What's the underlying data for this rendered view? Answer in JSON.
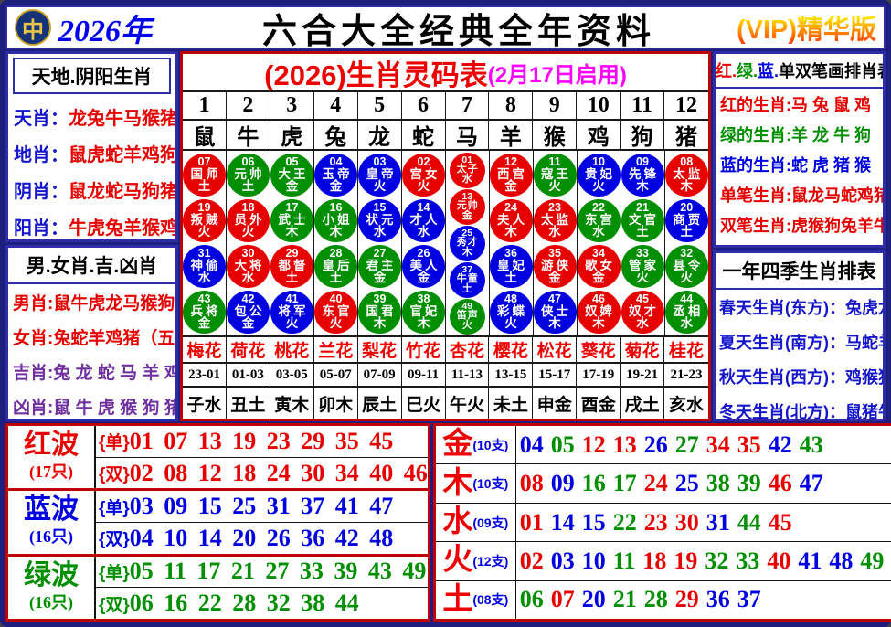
{
  "header": {
    "logo_glyph": "中",
    "year": "2026年",
    "title": "六合大全经典全年资料",
    "vip_badge": "(VIP)精华版"
  },
  "left_top": {
    "header": "天地.阴阳生肖",
    "rows": [
      {
        "label": "天肖：",
        "value": "龙兔牛马猴猪"
      },
      {
        "label": "地肖：",
        "value": "鼠虎蛇羊鸡狗"
      },
      {
        "label": "阴肖：",
        "value": "鼠龙蛇马狗猪"
      },
      {
        "label": "阳肖：",
        "value": "牛虎兔羊猴鸡"
      }
    ]
  },
  "left_bottom": {
    "header": "男.女肖.吉.凶肖",
    "rows": [
      {
        "label": "男肖:",
        "value": "鼠牛虎龙马猴狗",
        "c": "r"
      },
      {
        "label": "女肖:",
        "value": "兔蛇羊鸡猪（五宫",
        "c": "r"
      },
      {
        "label": "吉肖:",
        "value": "兔 龙 蛇 马 羊 鸡",
        "c": "p"
      },
      {
        "label": "凶肖:",
        "value": "鼠 牛 虎 猴 狗 猪",
        "c": "p"
      }
    ]
  },
  "main": {
    "title_red": "(2026)生肖灵码表",
    "title_note": "(2月17日启用)",
    "numbers": [
      "1",
      "2",
      "3",
      "4",
      "5",
      "6",
      "7",
      "8",
      "9",
      "10",
      "11",
      "12"
    ],
    "animals": [
      "鼠",
      "牛",
      "虎",
      "兔",
      "龙",
      "蛇",
      "马",
      "羊",
      "猴",
      "鸡",
      "狗",
      "猪"
    ],
    "columns": [
      [
        {
          "n": "07",
          "role": "国师",
          "el": "土",
          "c": "r"
        },
        {
          "n": "19",
          "role": "叛贼",
          "el": "火",
          "c": "r"
        },
        {
          "n": "31",
          "role": "神偷",
          "el": "水",
          "c": "b"
        },
        {
          "n": "43",
          "role": "兵将",
          "el": "金",
          "c": "g"
        }
      ],
      [
        {
          "n": "06",
          "role": "元帅",
          "el": "土",
          "c": "g"
        },
        {
          "n": "18",
          "role": "员外",
          "el": "火",
          "c": "r"
        },
        {
          "n": "30",
          "role": "大将",
          "el": "水",
          "c": "r"
        },
        {
          "n": "42",
          "role": "包公",
          "el": "金",
          "c": "b"
        }
      ],
      [
        {
          "n": "05",
          "role": "大王",
          "el": "金",
          "c": "g"
        },
        {
          "n": "17",
          "role": "武士",
          "el": "木",
          "c": "g"
        },
        {
          "n": "29",
          "role": "都督",
          "el": "土",
          "c": "r"
        },
        {
          "n": "41",
          "role": "将军",
          "el": "火",
          "c": "b"
        }
      ],
      [
        {
          "n": "04",
          "role": "玉帝",
          "el": "金",
          "c": "b"
        },
        {
          "n": "16",
          "role": "小姐",
          "el": "木",
          "c": "g"
        },
        {
          "n": "28",
          "role": "皇后",
          "el": "土",
          "c": "g"
        },
        {
          "n": "40",
          "role": "东官",
          "el": "火",
          "c": "r"
        }
      ],
      [
        {
          "n": "03",
          "role": "皇帝",
          "el": "火",
          "c": "b"
        },
        {
          "n": "15",
          "role": "状元",
          "el": "水",
          "c": "b"
        },
        {
          "n": "27",
          "role": "君主",
          "el": "金",
          "c": "g"
        },
        {
          "n": "39",
          "role": "国君",
          "el": "木",
          "c": "g"
        }
      ],
      [
        {
          "n": "02",
          "role": "宫女",
          "el": "火",
          "c": "r"
        },
        {
          "n": "14",
          "role": "才人",
          "el": "水",
          "c": "b"
        },
        {
          "n": "26",
          "role": "美人",
          "el": "金",
          "c": "b"
        },
        {
          "n": "38",
          "role": "官妃",
          "el": "木",
          "c": "g"
        }
      ],
      [
        {
          "n": "01",
          "role": "太子",
          "el": "水",
          "c": "r"
        },
        {
          "n": "13",
          "role": "元帅",
          "el": "金",
          "c": "r"
        },
        {
          "n": "25",
          "role": "秀才",
          "el": "木",
          "c": "b"
        },
        {
          "n": "37",
          "role": "牛童",
          "el": "土",
          "c": "b"
        },
        {
          "n": "49",
          "role": "笛声",
          "el": "火",
          "c": "g"
        }
      ],
      [
        {
          "n": "12",
          "role": "西宫",
          "el": "金",
          "c": "r"
        },
        {
          "n": "24",
          "role": "夫人",
          "el": "木",
          "c": "r"
        },
        {
          "n": "36",
          "role": "皇妃",
          "el": "土",
          "c": "b"
        },
        {
          "n": "48",
          "role": "彩蝶",
          "el": "火",
          "c": "b"
        }
      ],
      [
        {
          "n": "11",
          "role": "寇王",
          "el": "火",
          "c": "g"
        },
        {
          "n": "23",
          "role": "太监",
          "el": "水",
          "c": "r"
        },
        {
          "n": "35",
          "role": "游侠",
          "el": "金",
          "c": "r"
        },
        {
          "n": "47",
          "role": "侠士",
          "el": "木",
          "c": "b"
        }
      ],
      [
        {
          "n": "10",
          "role": "贵妃",
          "el": "火",
          "c": "b"
        },
        {
          "n": "22",
          "role": "东宫",
          "el": "水",
          "c": "g"
        },
        {
          "n": "34",
          "role": "歌女",
          "el": "金",
          "c": "r"
        },
        {
          "n": "46",
          "role": "奴婢",
          "el": "木",
          "c": "r"
        }
      ],
      [
        {
          "n": "09",
          "role": "先锋",
          "el": "木",
          "c": "b"
        },
        {
          "n": "21",
          "role": "文官",
          "el": "土",
          "c": "g"
        },
        {
          "n": "33",
          "role": "管家",
          "el": "火",
          "c": "g"
        },
        {
          "n": "45",
          "role": "奴才",
          "el": "水",
          "c": "r"
        }
      ],
      [
        {
          "n": "08",
          "role": "太监",
          "el": "木",
          "c": "r"
        },
        {
          "n": "20",
          "role": "商贾",
          "el": "土",
          "c": "b"
        },
        {
          "n": "32",
          "role": "县令",
          "el": "火",
          "c": "g"
        },
        {
          "n": "44",
          "role": "丞相",
          "el": "水",
          "c": "g"
        }
      ]
    ],
    "flowers": [
      "梅花",
      "荷花",
      "桃花",
      "兰花",
      "梨花",
      "竹花",
      "杏花",
      "樱花",
      "松花",
      "葵花",
      "菊花",
      "桂花"
    ],
    "times": [
      "23-01",
      "01-03",
      "03-05",
      "05-07",
      "07-09",
      "09-11",
      "11-13",
      "13-15",
      "15-17",
      "17-19",
      "19-21",
      "21-23"
    ],
    "branches": [
      "子水",
      "丑土",
      "寅木",
      "卯木",
      "辰土",
      "巳火",
      "午火",
      "未土",
      "申金",
      "酉金",
      "戌土",
      "亥水"
    ]
  },
  "right_top": {
    "header_parts": [
      {
        "t": "红.",
        "c": "r"
      },
      {
        "t": "绿.",
        "c": "g"
      },
      {
        "t": "蓝.",
        "c": "b"
      },
      {
        "t": "单双笔画排肖表",
        "c": "k"
      }
    ],
    "rows": [
      {
        "label": "红的生肖:",
        "value": "马 兔 鼠 鸡",
        "c": "r"
      },
      {
        "label": "绿的生肖:",
        "value": "羊 龙 牛 狗",
        "c": "g"
      },
      {
        "label": "蓝的生肖:",
        "value": "蛇 虎 猪 猴",
        "c": "b"
      },
      {
        "label": "单笔生肖:",
        "value": "鼠龙马蛇鸡猪",
        "c": "r"
      },
      {
        "label": "双笔生肖:",
        "value": "虎猴狗兔羊牛",
        "c": "r"
      }
    ]
  },
  "right_bottom": {
    "header": "一年四季生肖排表",
    "rows": [
      "春天生肖(东方)：兔虎龙",
      "夏天生肖(南方)：马蛇羊",
      "秋天生肖(西方)：鸡猴狗",
      "冬天生肖(北方)：鼠猪牛"
    ]
  },
  "waves": [
    {
      "name": "红波",
      "count": "(17只)",
      "c": "r",
      "odd_tag": "{单}",
      "odd": "01 07 13 19 23 29 35 45",
      "even_tag": "{双}",
      "even": "02 08 12 18 24 30 34 40 46"
    },
    {
      "name": "蓝波",
      "count": "(16只)",
      "c": "b",
      "odd_tag": "{单}",
      "odd": "03 09 15 25 31 37 41 47",
      "even_tag": "{双}",
      "even": "04 10 14 20 26 36 42 48"
    },
    {
      "name": "绿波",
      "count": "(16只)",
      "c": "g",
      "odd_tag": "{单}",
      "odd": "05 11 17 21 27 33 39 43 49",
      "even_tag": "{双}",
      "even": "06 16 22 28 32 38 44"
    }
  ],
  "elements": [
    {
      "name": "金",
      "count": "(10支)",
      "nums": [
        [
          "04",
          "b"
        ],
        [
          "05",
          "g"
        ],
        [
          "12",
          "r"
        ],
        [
          "13",
          "r"
        ],
        [
          "26",
          "b"
        ],
        [
          "27",
          "g"
        ],
        [
          "34",
          "r"
        ],
        [
          "35",
          "r"
        ],
        [
          "42",
          "b"
        ],
        [
          "43",
          "g"
        ]
      ]
    },
    {
      "name": "木",
      "count": "(10支)",
      "nums": [
        [
          "08",
          "r"
        ],
        [
          "09",
          "b"
        ],
        [
          "16",
          "g"
        ],
        [
          "17",
          "g"
        ],
        [
          "24",
          "r"
        ],
        [
          "25",
          "b"
        ],
        [
          "38",
          "g"
        ],
        [
          "39",
          "g"
        ],
        [
          "46",
          "r"
        ],
        [
          "47",
          "b"
        ]
      ]
    },
    {
      "name": "水",
      "count": "(09支)",
      "nums": [
        [
          "01",
          "r"
        ],
        [
          "14",
          "b"
        ],
        [
          "15",
          "b"
        ],
        [
          "22",
          "g"
        ],
        [
          "23",
          "r"
        ],
        [
          "30",
          "r"
        ],
        [
          "31",
          "b"
        ],
        [
          "44",
          "g"
        ],
        [
          "45",
          "r"
        ]
      ]
    },
    {
      "name": "火",
      "count": "(12支)",
      "nums": [
        [
          "02",
          "r"
        ],
        [
          "03",
          "b"
        ],
        [
          "10",
          "b"
        ],
        [
          "11",
          "g"
        ],
        [
          "18",
          "r"
        ],
        [
          "19",
          "r"
        ],
        [
          "32",
          "g"
        ],
        [
          "33",
          "g"
        ],
        [
          "40",
          "r"
        ],
        [
          "41",
          "b"
        ],
        [
          "48",
          "b"
        ],
        [
          "49",
          "g"
        ]
      ]
    },
    {
      "name": "土",
      "count": "(08支)",
      "nums": [
        [
          "06",
          "g"
        ],
        [
          "07",
          "r"
        ],
        [
          "20",
          "b"
        ],
        [
          "21",
          "g"
        ],
        [
          "28",
          "g"
        ],
        [
          "29",
          "r"
        ],
        [
          "36",
          "b"
        ],
        [
          "37",
          "b"
        ]
      ]
    }
  ],
  "colors": {
    "red": "#e60000",
    "green": "#008f00",
    "blue": "#0000e0",
    "purple": "#7030a0",
    "magenta": "#ff00ff"
  }
}
